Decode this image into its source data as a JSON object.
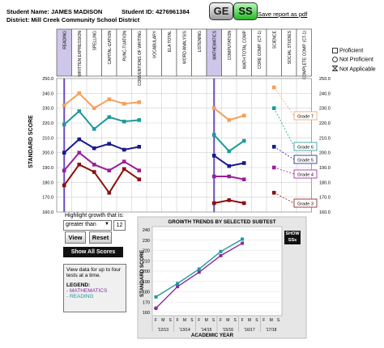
{
  "student": {
    "name_label": "Student Name: JAMES MADISON",
    "id_label": "Student ID: 4276961384",
    "district_label": "District: Mill Creek Community School District"
  },
  "toolbar": {
    "ge_label": "GE",
    "ss_label": "SS",
    "save_pdf_label": "Save report as pdf"
  },
  "subtests": [
    "READING",
    "WRITTEN EXPRESSION",
    "SPELLING",
    "CAPITAL-IZATION",
    "PUNC-TUATION",
    "CONVENTIONS OF WRITING",
    "VOCABULARY",
    "ELA TOTAL",
    "WORD ANALYSIS",
    "LISTENING",
    "MATHEMATICS",
    "COMPUTATION",
    "MATH TOTAL COMP",
    "CORE COMP. (CT-1)",
    "SCIENCE",
    "SOCIAL STUDIES",
    "COMPLETE COMP. (CT-1)"
  ],
  "main_chart": {
    "ylabel": "STANDARD SCORE",
    "left_ticks": [
      "250.0",
      "240.0",
      "230.0",
      "220.0",
      "210.0",
      "200.0",
      "190.0",
      "180.0",
      "170.0",
      "160.0"
    ],
    "right_ticks": [
      "250.0",
      "240.0",
      "230.0",
      "220.0",
      "210.0",
      "200.0",
      "190.0",
      "180.0",
      "170.0",
      "160.0"
    ],
    "grade_labels": [
      "Grade 7",
      "Grade 6",
      "Grade 5",
      "Grade 4",
      "Grade 3"
    ]
  },
  "legend": {
    "proficient": "Proficient",
    "not_proficient": "Not Proficient",
    "not_applicable": "Not Applicable"
  },
  "controls": {
    "highlight_label": "Highlight growth that is:",
    "select_value": "greater than",
    "amount": "12",
    "view_label": "View",
    "reset_label": "Reset",
    "show_all_label": "Show All Scores"
  },
  "info": {
    "text": "View data for up to four tests at a time.",
    "legend_title": "LEGEND:",
    "math_label": "- MATHEMATICS",
    "reading_label": "- READING"
  },
  "trends_chart": {
    "title": "GROWTH TRENDS BY SELECTED SUBTEST",
    "show_ss_label": "SHOW SSs",
    "ylabel": "STANDARD SCORE",
    "xlabel": "ACADEMIC YEAR",
    "y_ticks": [
      "240",
      "230",
      "220",
      "210",
      "200",
      "190",
      "180",
      "170",
      "160"
    ],
    "season_labels": [
      "F",
      "M",
      "S",
      "F",
      "M",
      "S",
      "F",
      "M",
      "S",
      "F",
      "M",
      "S",
      "F",
      "M",
      "S",
      "F",
      "M",
      "S"
    ],
    "year_labels": [
      "'12/13",
      "'13/14",
      "'14/15",
      "'15/16",
      "'16/17",
      "'17/18"
    ]
  },
  "chart_data": [
    {
      "type": "line",
      "ylabel": "STANDARD SCORE",
      "ylim": [
        160,
        250
      ],
      "categories": [
        "READING",
        "WRITTEN EXPRESSION",
        "SPELLING",
        "CAPITAL-IZATION",
        "PUNC-TUATION",
        "CONVENTIONS OF WRITING",
        "VOCABULARY",
        "ELA TOTAL",
        "WORD ANALYSIS",
        "LISTENING",
        "MATHEMATICS",
        "COMPUTATION",
        "MATH TOTAL COMP",
        "CORE COMP. (CT-1)",
        "SCIENCE",
        "SOCIAL STUDIES",
        "COMPLETE COMP. (CT-1)"
      ],
      "series": [
        {
          "name": "Grade 7",
          "color": "#f5a05a",
          "segments": [
            [
              0,
              [
                232,
                240,
                230,
                236,
                233,
                234
              ]
            ],
            [
              10,
              [
                230,
                222,
                225
              ]
            ],
            [
              14,
              [
                244
              ]
            ]
          ]
        },
        {
          "name": "Grade 6",
          "color": "#1e9a9a",
          "segments": [
            [
              0,
              [
                219,
                228,
                216,
                224,
                221,
                222
              ]
            ],
            [
              10,
              [
                212,
                201,
                208
              ]
            ],
            [
              14,
              [
                230
              ]
            ]
          ]
        },
        {
          "name": "Grade 5",
          "color": "#1a1a8c",
          "segments": [
            [
              0,
              [
                200,
                209,
                203,
                206,
                202,
                204
              ]
            ],
            [
              10,
              [
                198,
                191,
                193
              ]
            ],
            [
              14,
              [
                204
              ]
            ]
          ]
        },
        {
          "name": "Grade 4",
          "color": "#9a1e9a",
          "segments": [
            [
              0,
              [
                188,
                200,
                192,
                188,
                194,
                188
              ]
            ],
            [
              10,
              [
                184,
                184,
                182
              ]
            ],
            [
              14,
              [
                190
              ]
            ]
          ]
        },
        {
          "name": "Grade 3",
          "color": "#8b1010",
          "segments": [
            [
              0,
              [
                178,
                192,
                187,
                173,
                189,
                182
              ]
            ],
            [
              10,
              [
                166,
                168,
                166
              ]
            ],
            [
              14,
              [
                173
              ]
            ]
          ]
        }
      ]
    },
    {
      "type": "line",
      "title": "GROWTH TRENDS BY SELECTED SUBTEST",
      "xlabel": "ACADEMIC YEAR",
      "ylabel": "STANDARD SCORE",
      "ylim": [
        160,
        240
      ],
      "x": [
        "'12/13 F",
        "'13/14 F",
        "'14/15 F",
        "'15/16 F",
        "'16/17 F"
      ],
      "series": [
        {
          "name": "MATHEMATICS",
          "color": "#8a2aa0",
          "values": [
            164,
            185,
            199,
            215,
            227
          ]
        },
        {
          "name": "READING",
          "color": "#1e9a9a",
          "values": [
            175,
            188,
            202,
            219,
            231
          ]
        }
      ]
    }
  ]
}
